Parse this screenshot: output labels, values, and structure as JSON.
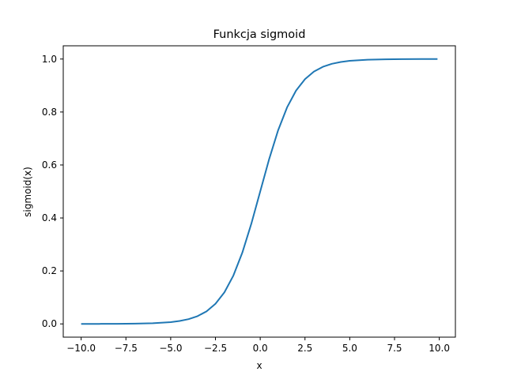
{
  "chart_data": {
    "type": "line",
    "title": "Funkcja sigmoid",
    "xlabel": "x",
    "ylabel": "sigmoid(x)",
    "xlim": [
      -11.0,
      10.9
    ],
    "ylim": [
      -0.05,
      1.05
    ],
    "xticks": [
      -10.0,
      -7.5,
      -5.0,
      -2.5,
      0.0,
      2.5,
      5.0,
      7.5,
      10.0
    ],
    "xtick_labels": [
      "−10.0",
      "−7.5",
      "−5.0",
      "−2.5",
      "0.0",
      "2.5",
      "5.0",
      "7.5",
      "10.0"
    ],
    "yticks": [
      0.0,
      0.2,
      0.4,
      0.6,
      0.8,
      1.0
    ],
    "ytick_labels": [
      "0.0",
      "0.2",
      "0.4",
      "0.6",
      "0.8",
      "1.0"
    ],
    "grid": false,
    "series": [
      {
        "color": "#1f77b4",
        "x": [
          -10,
          -9,
          -8,
          -7,
          -6,
          -5,
          -4.5,
          -4,
          -3.5,
          -3,
          -2.5,
          -2,
          -1.5,
          -1,
          -0.5,
          0,
          0.5,
          1,
          1.5,
          2,
          2.5,
          3,
          3.5,
          4,
          4.5,
          5,
          6,
          7,
          8,
          9,
          9.9
        ],
        "y": [
          0.0,
          0.0001,
          0.0003,
          0.0009,
          0.0025,
          0.0067,
          0.011,
          0.018,
          0.0293,
          0.0474,
          0.0759,
          0.1192,
          0.1824,
          0.2689,
          0.3775,
          0.5,
          0.6225,
          0.7311,
          0.8176,
          0.8808,
          0.9241,
          0.9526,
          0.9707,
          0.982,
          0.989,
          0.9933,
          0.9975,
          0.9991,
          0.9997,
          0.9999,
          1.0
        ]
      }
    ]
  }
}
